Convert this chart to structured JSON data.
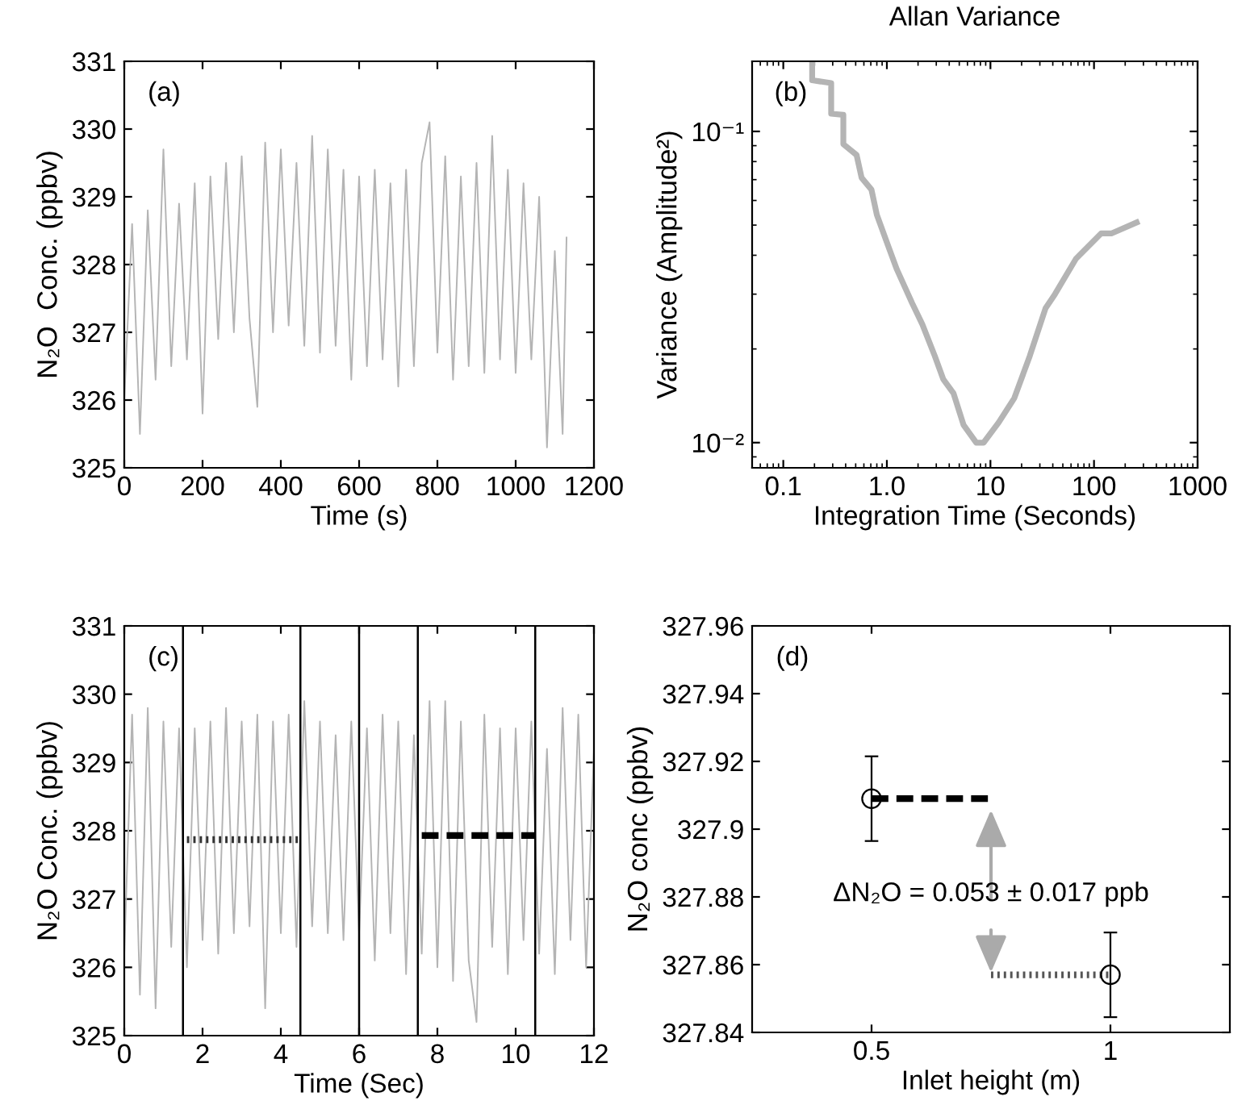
{
  "chart_data": [
    {
      "type": "line",
      "xlabel": "Time (s)",
      "ylabel": "N₂O  Conc. (ppbv)",
      "annotations": [
        "(a)"
      ],
      "xlim": [
        0,
        1200
      ],
      "ylim": [
        325,
        331
      ],
      "xticks": [
        0,
        200,
        400,
        600,
        800,
        1000,
        1200
      ],
      "yticks": [
        325,
        326,
        327,
        328,
        329,
        330,
        331
      ],
      "series": [
        {
          "color": "#b4b4b4",
          "x": [
            0,
            20,
            40,
            60,
            80,
            100,
            120,
            140,
            160,
            180,
            200,
            220,
            240,
            260,
            280,
            300,
            320,
            340,
            360,
            380,
            400,
            420,
            440,
            460,
            480,
            500,
            520,
            540,
            560,
            580,
            600,
            620,
            640,
            660,
            680,
            700,
            720,
            740,
            760,
            780,
            800,
            820,
            840,
            860,
            880,
            900,
            920,
            940,
            960,
            980,
            1000,
            1020,
            1040,
            1060,
            1080,
            1100,
            1120,
            1130
          ],
          "values": [
            326.0,
            328.6,
            325.5,
            328.8,
            326.3,
            329.7,
            326.5,
            328.9,
            326.6,
            329.2,
            325.8,
            329.3,
            326.9,
            329.5,
            327.0,
            329.6,
            327.2,
            325.9,
            329.8,
            327.0,
            329.7,
            327.1,
            329.5,
            326.8,
            329.9,
            326.7,
            329.7,
            326.8,
            329.4,
            326.3,
            329.3,
            326.5,
            329.4,
            326.6,
            329.2,
            326.2,
            329.4,
            326.5,
            329.5,
            330.1,
            326.7,
            329.6,
            326.3,
            329.3,
            326.5,
            329.5,
            326.4,
            329.9,
            326.6,
            329.4,
            326.4,
            329.2,
            326.6,
            329.0,
            325.3,
            328.2,
            325.5,
            328.4
          ]
        }
      ]
    },
    {
      "type": "line",
      "title": "Allan Variance",
      "xlabel": "Integration Time (Seconds)",
      "ylabel": "Variance (Amplitude²)",
      "annotations": [
        "(b)"
      ],
      "log": "xy",
      "xlim": [
        0.05,
        1000
      ],
      "ylim": [
        0.0083,
        0.168
      ],
      "xticks": [
        {
          "value": 0.1,
          "label": "0.1"
        },
        {
          "value": 1,
          "label": "1.0"
        },
        10,
        100,
        1000
      ],
      "yticks": [
        {
          "value": 0.01,
          "label": "10⁻²"
        },
        {
          "value": 0.1,
          "label": "10⁻¹"
        }
      ],
      "series": [
        {
          "color": "#b4b4b4",
          "x": [
            0.19,
            0.19,
            0.29,
            0.29,
            0.38,
            0.38,
            0.51,
            0.57,
            0.71,
            0.8,
            1.0,
            1.25,
            1.76,
            2.2,
            2.9,
            3.5,
            4.4,
            5.5,
            7.3,
            8.6,
            12,
            17,
            24,
            34,
            42,
            67,
            117,
            147,
            258
          ],
          "values": [
            0.168,
            0.146,
            0.143,
            0.114,
            0.113,
            0.091,
            0.084,
            0.071,
            0.065,
            0.054,
            0.044,
            0.036,
            0.028,
            0.024,
            0.019,
            0.016,
            0.0144,
            0.0114,
            0.01,
            0.01,
            0.0116,
            0.0139,
            0.019,
            0.027,
            0.03,
            0.039,
            0.047,
            0.047,
            0.051
          ]
        }
      ]
    },
    {
      "type": "line",
      "xlabel": "Time (Sec)",
      "ylabel": "N₂O Conc. (ppbv)",
      "annotations": [
        "(c)"
      ],
      "xlim": [
        0,
        12
      ],
      "ylim": [
        325,
        331
      ],
      "xticks": [
        0,
        2,
        4,
        6,
        8,
        10,
        12
      ],
      "yticks": [
        325,
        326,
        327,
        328,
        329,
        330,
        331
      ],
      "ref_lines": [
        {
          "axis": "x",
          "value": 1.5,
          "color": "#000000"
        },
        {
          "axis": "x",
          "value": 4.5,
          "color": "#000000"
        },
        {
          "axis": "x",
          "value": 6,
          "color": "#000000"
        },
        {
          "axis": "x",
          "value": 7.5,
          "color": "#000000"
        },
        {
          "axis": "x",
          "value": 10.5,
          "color": "#000000"
        }
      ],
      "series": [
        {
          "color": "#b4b4b4",
          "x": [
            0,
            0.2,
            0.4,
            0.6,
            0.8,
            1.0,
            1.2,
            1.4,
            1.6,
            1.8,
            2.0,
            2.2,
            2.4,
            2.6,
            2.8,
            3.0,
            3.2,
            3.4,
            3.6,
            3.8,
            4.0,
            4.2,
            4.4,
            4.6,
            4.8,
            5.0,
            5.2,
            5.4,
            5.6,
            5.8,
            6.0,
            6.2,
            6.4,
            6.6,
            6.8,
            7.0,
            7.2,
            7.4,
            7.6,
            7.8,
            8.0,
            8.2,
            8.4,
            8.6,
            8.8,
            9.0,
            9.2,
            9.4,
            9.6,
            9.8,
            10.0,
            10.2,
            10.4,
            10.6,
            10.8,
            11.0,
            11.2,
            11.4,
            11.6,
            11.8,
            12.0
          ],
          "values": [
            326.2,
            329.7,
            325.6,
            329.8,
            325.4,
            329.6,
            326.3,
            329.5,
            326.0,
            329.5,
            326.4,
            329.6,
            326.2,
            329.8,
            326.5,
            329.6,
            326.6,
            329.7,
            325.4,
            329.6,
            326.5,
            329.7,
            326.3,
            329.9,
            326.6,
            329.6,
            326.5,
            329.4,
            326.4,
            329.6,
            326.5,
            329.5,
            326.1,
            329.7,
            326.5,
            329.6,
            325.9,
            329.4,
            326.2,
            329.9,
            326.0,
            329.9,
            325.8,
            329.6,
            326.1,
            325.2,
            329.7,
            326.3,
            329.5,
            325.9,
            329.5,
            326.4,
            329.6,
            326.2,
            329.2,
            325.9,
            329.8,
            326.4,
            329.7,
            326.0,
            329.2
          ]
        },
        {
          "color": "#333333",
          "line_style": "dotted",
          "x": [
            1.6,
            4.5
          ],
          "values": [
            327.87,
            327.87
          ]
        },
        {
          "color": "#000000",
          "line_style": "dashed",
          "x": [
            7.6,
            10.5
          ],
          "values": [
            327.93,
            327.93
          ]
        }
      ]
    },
    {
      "type": "scatter",
      "xlabel": "Inlet height (m)",
      "ylabel": "N₂O conc (ppbv)",
      "annotations": [
        "(d)",
        "ΔN₂O = 0.053 ± 0.017 ppb"
      ],
      "xlim": [
        0.25,
        1.25
      ],
      "ylim": [
        327.84,
        327.96
      ],
      "xticks": [
        0.5,
        1
      ],
      "yticks": [
        327.84,
        327.86,
        327.88,
        327.9,
        327.92,
        327.94,
        327.96
      ],
      "series": [
        {
          "color": "#000000",
          "marker": "circle",
          "x": [
            0.5,
            1
          ],
          "values": [
            327.909,
            327.857
          ],
          "errors": [
            0.0125,
            0.0125
          ]
        },
        {
          "type": "line",
          "color": "#000000",
          "line_style": "dashed",
          "x": [
            0.5,
            0.75
          ],
          "values": [
            327.909,
            327.909
          ]
        },
        {
          "type": "line",
          "color": "#555555",
          "line_style": "dotted",
          "x": [
            0.75,
            1
          ],
          "values": [
            327.857,
            327.857
          ]
        }
      ]
    }
  ]
}
